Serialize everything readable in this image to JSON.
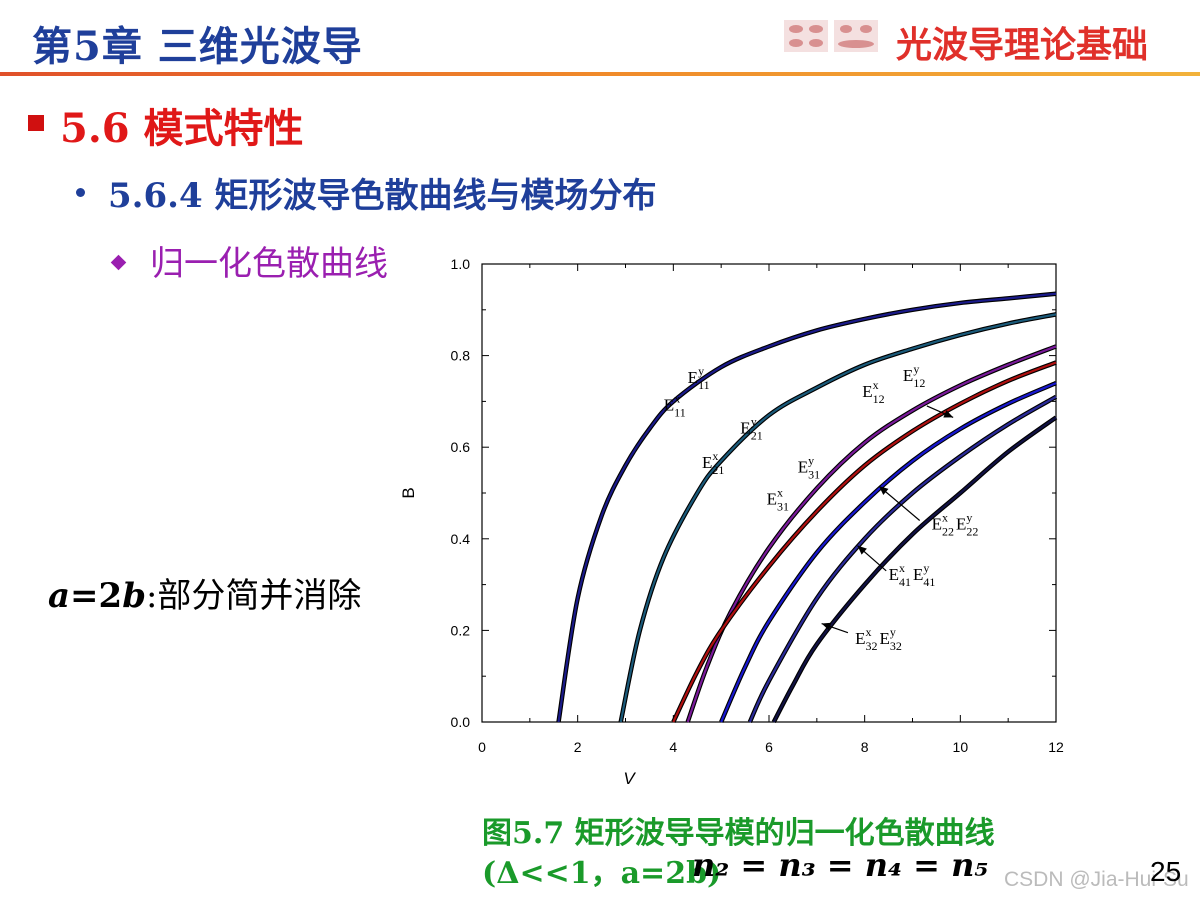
{
  "header": {
    "chapter_title": "第5章 三维光波导",
    "book_title": "光波导理论基础"
  },
  "section": {
    "title": "5.6   模式特性"
  },
  "subsection": {
    "title": "5.6.4 矩形波导色散曲线与模场分布"
  },
  "topic": {
    "title": "归一化色散曲线"
  },
  "left_note": {
    "var_a": "a",
    "eq": "=2",
    "var_b": "b",
    "text": ":部分简并消除"
  },
  "caption": {
    "line1": "图5.7 矩形波导导模的归一化色散曲线",
    "line2": "(Δ<<1，a=2b)"
  },
  "equation": "n₂ = n₃ = n₄ = n₅",
  "page_number": "25",
  "watermark": "CSDN @Jia-Hui-Su",
  "colors": {
    "title_blue": "#1f3f9a",
    "section_red": "#e01818",
    "topic_purple": "#9a1fb0",
    "caption_green": "#1a9a2a",
    "header_orange": "#f08a2a"
  },
  "chart_data": {
    "type": "line",
    "xlabel": "V",
    "ylabel": "B",
    "xlim": [
      0,
      12
    ],
    "ylim": [
      0,
      1.0
    ],
    "xticks": [
      "0",
      "2",
      "4",
      "6",
      "8",
      "10",
      "12"
    ],
    "yticks": [
      "0.0",
      "0.2",
      "0.4",
      "0.6",
      "0.8",
      "1.0"
    ],
    "grid": false,
    "series": [
      {
        "name": "E11",
        "color": "#1a1a8a",
        "points": [
          [
            1.6,
            0
          ],
          [
            2.0,
            0.27
          ],
          [
            2.5,
            0.45
          ],
          [
            3,
            0.56
          ],
          [
            3.5,
            0.64
          ],
          [
            4,
            0.7
          ],
          [
            5,
            0.775
          ],
          [
            6,
            0.82
          ],
          [
            7,
            0.855
          ],
          [
            8,
            0.88
          ],
          [
            9,
            0.9
          ],
          [
            10,
            0.915
          ],
          [
            11,
            0.925
          ],
          [
            12,
            0.935
          ]
        ]
      },
      {
        "name": "E21",
        "color": "#1a5a7a",
        "points": [
          [
            2.9,
            0
          ],
          [
            3.3,
            0.2
          ],
          [
            3.8,
            0.36
          ],
          [
            4.5,
            0.5
          ],
          [
            5,
            0.57
          ],
          [
            6,
            0.67
          ],
          [
            7,
            0.73
          ],
          [
            8,
            0.78
          ],
          [
            9,
            0.815
          ],
          [
            10,
            0.845
          ],
          [
            11,
            0.87
          ],
          [
            12,
            0.89
          ]
        ]
      },
      {
        "name": "E12",
        "color": "#7a1a9a",
        "points": [
          [
            4.3,
            0
          ],
          [
            4.7,
            0.12
          ],
          [
            5.2,
            0.24
          ],
          [
            6,
            0.38
          ],
          [
            7,
            0.51
          ],
          [
            8,
            0.61
          ],
          [
            9,
            0.68
          ],
          [
            10,
            0.735
          ],
          [
            11,
            0.78
          ],
          [
            12,
            0.82
          ]
        ]
      },
      {
        "name": "E31",
        "color": "#b01010",
        "points": [
          [
            4.0,
            0
          ],
          [
            4.5,
            0.11
          ],
          [
            5,
            0.2
          ],
          [
            6,
            0.34
          ],
          [
            7,
            0.46
          ],
          [
            8,
            0.56
          ],
          [
            9,
            0.635
          ],
          [
            10,
            0.695
          ],
          [
            11,
            0.745
          ],
          [
            12,
            0.785
          ]
        ]
      },
      {
        "name": "E22",
        "color": "#1818d0",
        "points": [
          [
            5.0,
            0
          ],
          [
            5.5,
            0.12
          ],
          [
            6,
            0.22
          ],
          [
            7,
            0.37
          ],
          [
            8,
            0.48
          ],
          [
            9,
            0.57
          ],
          [
            10,
            0.64
          ],
          [
            11,
            0.695
          ],
          [
            12,
            0.74
          ]
        ]
      },
      {
        "name": "E41",
        "color": "#2a2a9a",
        "points": [
          [
            5.6,
            0
          ],
          [
            6,
            0.09
          ],
          [
            7,
            0.27
          ],
          [
            8,
            0.4
          ],
          [
            9,
            0.5
          ],
          [
            10,
            0.58
          ],
          [
            11,
            0.65
          ],
          [
            12,
            0.71
          ]
        ]
      },
      {
        "name": "E32",
        "color": "#111144",
        "points": [
          [
            6.1,
            0
          ],
          [
            6.5,
            0.08
          ],
          [
            7,
            0.17
          ],
          [
            8,
            0.3
          ],
          [
            9,
            0.41
          ],
          [
            10,
            0.5
          ],
          [
            11,
            0.59
          ],
          [
            12,
            0.665
          ]
        ]
      }
    ],
    "annotations": [
      {
        "main": "E",
        "sup": "y",
        "sub": "11",
        "x": 4.3,
        "y": 0.74
      },
      {
        "main": "E",
        "sup": "x",
        "sub": "11",
        "x": 3.8,
        "y": 0.68
      },
      {
        "main": "E",
        "sup": "y",
        "sub": "21",
        "x": 5.4,
        "y": 0.63
      },
      {
        "main": "E",
        "sup": "x",
        "sub": "21",
        "x": 4.6,
        "y": 0.555
      },
      {
        "main": "E",
        "sup": "y",
        "sub": "31",
        "x": 6.6,
        "y": 0.545
      },
      {
        "main": "E",
        "sup": "x",
        "sub": "31",
        "x": 5.95,
        "y": 0.475
      },
      {
        "main": "E",
        "sup": "x",
        "sub": "12",
        "x": 7.95,
        "y": 0.71
      },
      {
        "main": "E",
        "sup": "y",
        "sub": "12",
        "x": 8.8,
        "y": 0.745
      },
      {
        "main": "E",
        "sup": "x",
        "sub": "22",
        "x": 9.4,
        "y": 0.42,
        "extra_sup": "y",
        "extra_sub": "22"
      },
      {
        "main": "E",
        "sup": "x",
        "sub": "41",
        "x": 8.5,
        "y": 0.31,
        "extra_sup": "y",
        "extra_sub": "41"
      },
      {
        "main": "E",
        "sup": "x",
        "sub": "32",
        "x": 7.8,
        "y": 0.17,
        "extra_sup": "y",
        "extra_sub": "32"
      }
    ],
    "arrows": [
      {
        "from": [
          9.3,
          0.69
        ],
        "to": [
          9.85,
          0.665
        ]
      },
      {
        "from": [
          9.15,
          0.44
        ],
        "to": [
          8.3,
          0.515
        ]
      },
      {
        "from": [
          8.45,
          0.33
        ],
        "to": [
          7.85,
          0.385
        ]
      },
      {
        "from": [
          7.65,
          0.195
        ],
        "to": [
          7.1,
          0.215
        ]
      }
    ]
  }
}
